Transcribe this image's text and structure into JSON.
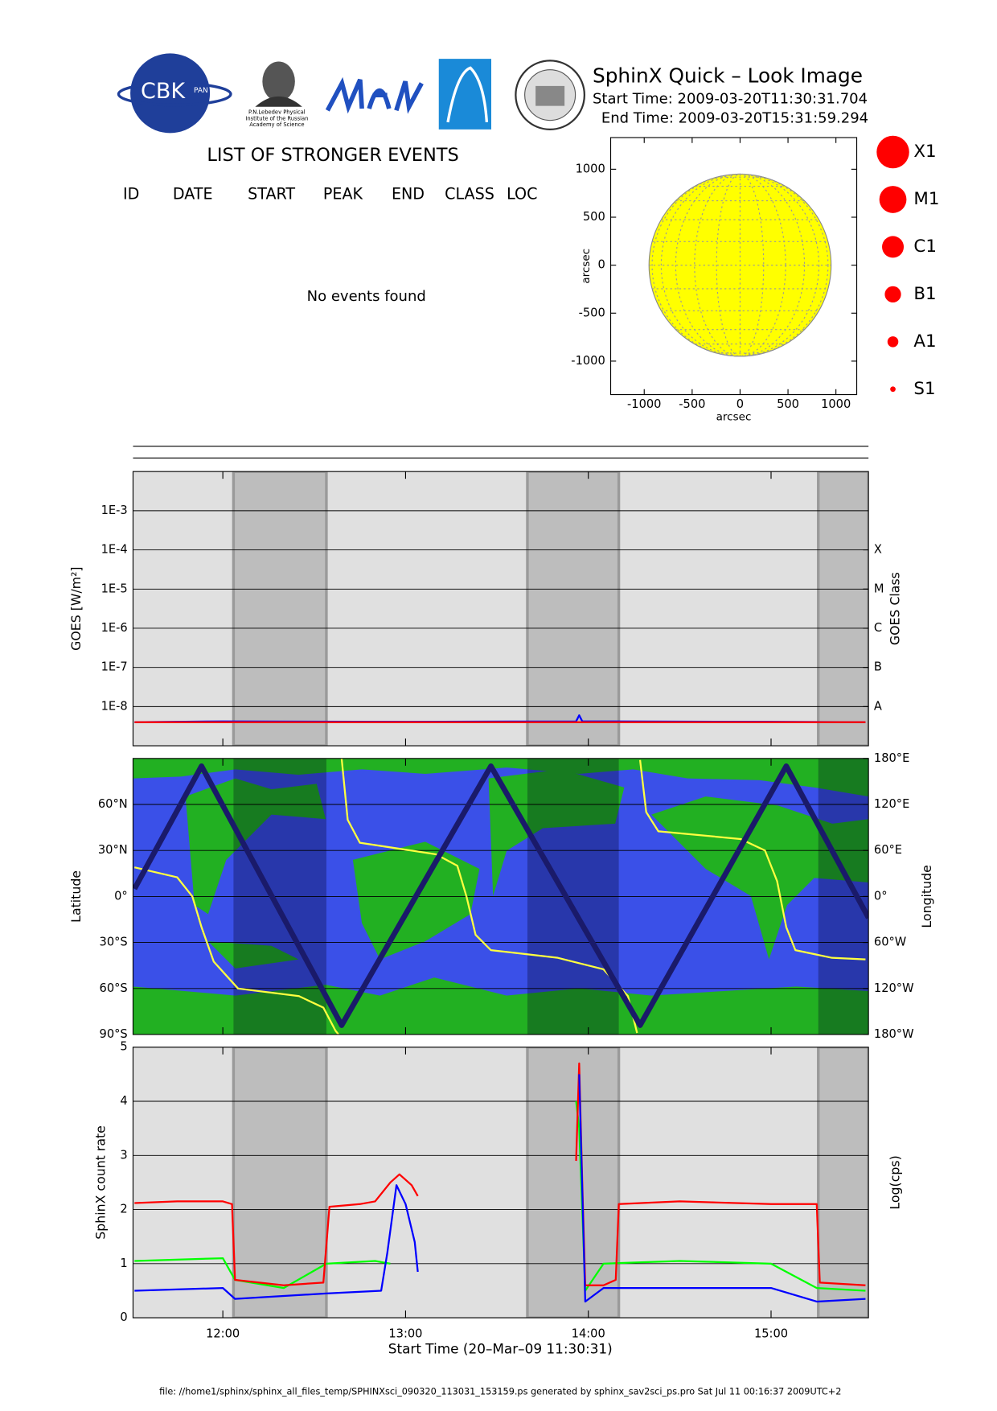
{
  "header": {
    "title": "SphinX Quick – Look Image",
    "start_time": "Start Time: 2009-03-20T11:30:31.704",
    "end_time": "End Time: 2009-03-20T15:31:59.294",
    "cbk": "CBK",
    "cbk_sub": "PAN",
    "lebedev": [
      "P.N.Lebedev Physical",
      "Institute of the Russian",
      "Academy of Science"
    ]
  },
  "events": {
    "title": "LIST OF STRONGER EVENTS",
    "columns": [
      "ID",
      "DATE",
      "START",
      "PEAK",
      "END",
      "CLASS",
      "LOC"
    ],
    "message": "No events found"
  },
  "sun_plot": {
    "xlabel": "arcsec",
    "ylabel": "arcsec",
    "xlim": [
      -1350,
      1217
    ],
    "ylim": [
      -1349,
      1330
    ],
    "xticks": [
      -1000,
      -500,
      0,
      500,
      1000
    ],
    "yticks": [
      -1000,
      -500,
      0,
      500,
      1000
    ],
    "radius": 950,
    "color": "#ffff00",
    "classes": [
      "X1",
      "M1",
      "C1",
      "B1",
      "A1",
      "S1"
    ],
    "class_color": "#ff0000"
  },
  "time_axis": {
    "xlim": [
      "11:30:31",
      "15:31:59"
    ],
    "xticks": [
      "12:00",
      "13:00",
      "14:00",
      "15:00"
    ],
    "xlabel": "Start Time (20–Mar–09 11:30:31)"
  },
  "night_intervals": [
    [
      "12:03:30",
      "12:34"
    ],
    [
      "13:40",
      "14:10"
    ],
    [
      "15:15:30",
      "15:31:59"
    ]
  ],
  "chart_data": [
    {
      "type": "line",
      "log": true,
      "background": "#e0e0e0",
      "night_color": "#bdbdbd",
      "ylabel": "GOES [W/m²]",
      "y2label": "GOES Class",
      "ylim": [
        1e-09,
        0.01
      ],
      "yticks": [
        {
          "value": 1e-08,
          "label": "1E-8"
        },
        {
          "value": 1e-07,
          "label": "1E-7"
        },
        {
          "value": 1e-06,
          "label": "1E-6"
        },
        {
          "value": 1e-05,
          "label": "1E-5"
        },
        {
          "value": 0.0001,
          "label": "1E-4"
        },
        {
          "value": 0.001,
          "label": "1E-3"
        }
      ],
      "y2lim": [
        1e-09,
        0.01
      ],
      "y2ticks": [
        {
          "value": 1e-08,
          "label": "A"
        },
        {
          "value": 1e-07,
          "label": "B"
        },
        {
          "value": 1e-06,
          "label": "C"
        },
        {
          "value": 1e-05,
          "label": "M"
        },
        {
          "value": 0.0001,
          "label": "X"
        }
      ],
      "series": [
        {
          "color": "#0000ff",
          "x": [
            "11:31",
            "12:00",
            "13:00",
            "13:56",
            "13:57",
            "13:58",
            "15:00",
            "15:31"
          ],
          "values": [
            4e-09,
            4.2e-09,
            4.1e-09,
            4.2e-09,
            6e-09,
            4.2e-09,
            4.1e-09,
            4e-09
          ]
        },
        {
          "color": "#ff0000",
          "x": [
            "11:31",
            "15:31"
          ],
          "values": [
            4e-09,
            4e-09
          ]
        }
      ]
    },
    {
      "type": "line",
      "log": false,
      "background": "#3a50e8",
      "night_color": "rgba(0,0,30,0.3)",
      "ylabel": "Latitude",
      "y2label": "Longitude",
      "ylim": [
        -90,
        90
      ],
      "yticks": [
        {
          "value": -90,
          "label": "90°S"
        },
        {
          "value": -60,
          "label": "60°S"
        },
        {
          "value": -30,
          "label": "30°S"
        },
        {
          "value": 0,
          "label": "0°"
        },
        {
          "value": 30,
          "label": "30°N"
        },
        {
          "value": 60,
          "label": "60°N"
        }
      ],
      "y2lim": [
        -180,
        180
      ],
      "y2ticks": [
        {
          "value": -180,
          "label": "180°W"
        },
        {
          "value": -120,
          "label": "120°W"
        },
        {
          "value": -60,
          "label": "60°W"
        },
        {
          "value": 0,
          "label": "0°"
        },
        {
          "value": 60,
          "label": "60°E"
        },
        {
          "value": 120,
          "label": "120°E"
        },
        {
          "value": 180,
          "label": "180°E"
        }
      ],
      "series": [
        {
          "color": "#ffff40",
          "axis": "y2",
          "x": [
            "11:31",
            "11:45",
            "11:50",
            "11:53",
            "11:57",
            "12:05",
            "12:25",
            "12:33",
            "12:37",
            "12:38",
            "12:39",
            "12:39",
            "12:41",
            "12:45",
            "13:10",
            "13:17",
            "13:20",
            "13:23",
            "13:28",
            "13:50",
            "14:05",
            "14:13",
            "14:16",
            "14:17",
            "14:17",
            "14:19",
            "14:23",
            "14:50",
            "14:58",
            "15:02",
            "15:05",
            "15:08",
            "15:20",
            "15:31"
          ],
          "values": [
            38,
            25,
            0,
            -40,
            -85,
            -120,
            -130,
            -145,
            -175,
            -180,
            null,
            180,
            100,
            70,
            55,
            40,
            0,
            -50,
            -70,
            -80,
            -95,
            -130,
            -178,
            null,
            178,
            110,
            85,
            75,
            60,
            20,
            -40,
            -70,
            -80,
            -82
          ]
        },
        {
          "color": "#1a1a6a",
          "x": [
            "11:31",
            "11:53",
            "12:39",
            "13:28",
            "14:17",
            "15:05",
            "15:32"
          ],
          "values": [
            5,
            85,
            -84,
            85,
            -84,
            85,
            -14
          ]
        }
      ]
    },
    {
      "type": "line",
      "log": false,
      "background": "#e0e0e0",
      "night_color": "#bdbdbd",
      "ylabel": "SphinX count rate",
      "y2label": "Log(cps)",
      "ylim": [
        0,
        5
      ],
      "yticks": [
        0,
        1,
        2,
        3,
        4,
        5
      ],
      "series": [
        {
          "color": "#00ff00",
          "x": [
            "11:31",
            "12:00",
            "12:04",
            "12:20",
            "12:34",
            "12:50",
            "12:55",
            "13:04",
            "13:56",
            "13:57",
            "13:59",
            "14:05",
            "14:30",
            "15:00",
            "15:15",
            "15:31"
          ],
          "values": [
            1.05,
            1.1,
            0.7,
            0.55,
            1.0,
            1.05,
            1.0,
            null,
            4.0,
            3.5,
            0.5,
            1.0,
            1.05,
            1.0,
            0.55,
            0.5
          ]
        },
        {
          "color": "#ff0000",
          "x": [
            "11:31",
            "11:45",
            "12:00",
            "12:03",
            "12:04",
            "12:20",
            "12:33",
            "12:35",
            "12:45",
            "12:50",
            "12:55",
            "12:58",
            "13:02",
            "13:04",
            "13:30",
            "13:56",
            "13:57",
            "13:58",
            "13:59",
            "14:05",
            "14:09",
            "14:10",
            "14:30",
            "15:00",
            "15:15",
            "15:16",
            "15:31"
          ],
          "values": [
            2.12,
            2.15,
            2.15,
            2.1,
            0.7,
            0.6,
            0.65,
            2.05,
            2.1,
            2.15,
            2.5,
            2.65,
            2.45,
            2.25,
            null,
            2.9,
            4.7,
            2.5,
            0.6,
            0.6,
            0.7,
            2.1,
            2.15,
            2.1,
            2.1,
            0.65,
            0.6
          ]
        },
        {
          "color": "#0000ff",
          "x": [
            "11:31",
            "12:00",
            "12:04",
            "12:34",
            "12:52",
            "12:54",
            "12:57",
            "13:00",
            "13:03",
            "13:04",
            "13:30",
            "13:57",
            "13:59",
            "14:05",
            "15:00",
            "15:15",
            "15:31"
          ],
          "values": [
            0.5,
            0.55,
            0.35,
            0.45,
            0.5,
            1.2,
            2.45,
            2.1,
            1.4,
            0.85,
            null,
            4.5,
            0.3,
            0.55,
            0.55,
            0.3,
            0.35
          ]
        }
      ]
    }
  ],
  "footer": "file: //home1/sphinx/sphinx_all_files_temp/SPHINXsci_090320_113031_153159.ps generated by sphinx_sav2sci_ps.pro Sat Jul 11 00:16:37 2009UTC+2"
}
